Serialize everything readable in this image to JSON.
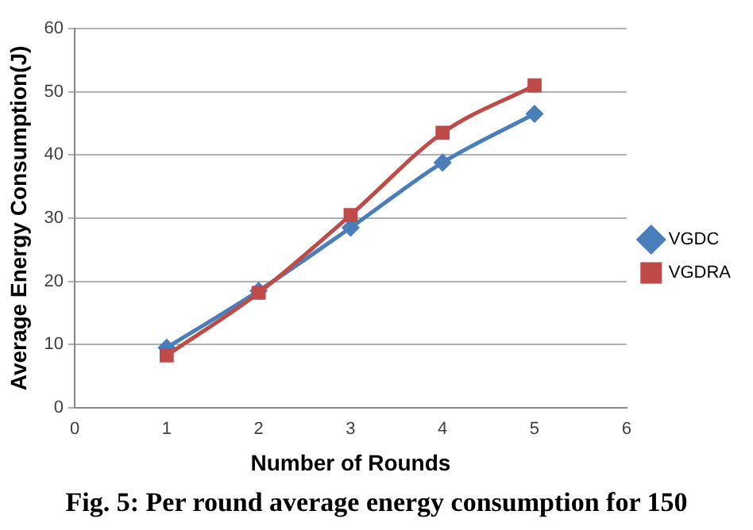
{
  "chart_data": {
    "type": "line",
    "xlabel": "Number of Rounds",
    "ylabel": "Average Energy Consumption(J)",
    "annotations": [
      "Fig. 5: Per round average energy consumption for 150"
    ],
    "x": [
      1,
      2,
      3,
      4,
      5
    ],
    "series": [
      {
        "name": "VGDC",
        "color": "#4a7ebb",
        "values": [
          9.5,
          18.5,
          28.5,
          38.8,
          46.5
        ],
        "marker": "diamond"
      },
      {
        "name": "VGDRA",
        "color": "#be4b48",
        "values": [
          8.3,
          18.2,
          30.5,
          43.5,
          51
        ],
        "marker": "square"
      }
    ],
    "xlim": [
      0,
      6
    ],
    "xticks": [
      0,
      1,
      2,
      3,
      4,
      5,
      6
    ],
    "ylim": [
      0,
      60
    ],
    "yticks": [
      0,
      10,
      20,
      30,
      40,
      50,
      60
    ],
    "grid": "y",
    "legend": "right"
  }
}
